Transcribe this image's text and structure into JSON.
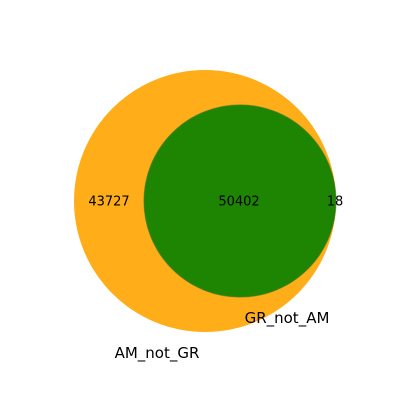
{
  "chart_data": {
    "type": "venn",
    "title": "",
    "sets": [
      {
        "name": "AM_not_GR",
        "color": "#ffa500"
      },
      {
        "name": "GR_not_AM",
        "color": "#008000"
      }
    ],
    "regions": {
      "only_first": 43727,
      "intersection": 50402,
      "only_second": 18
    },
    "region_labels": {
      "only_first": "43727",
      "intersection": "50402",
      "only_second": "18"
    }
  }
}
